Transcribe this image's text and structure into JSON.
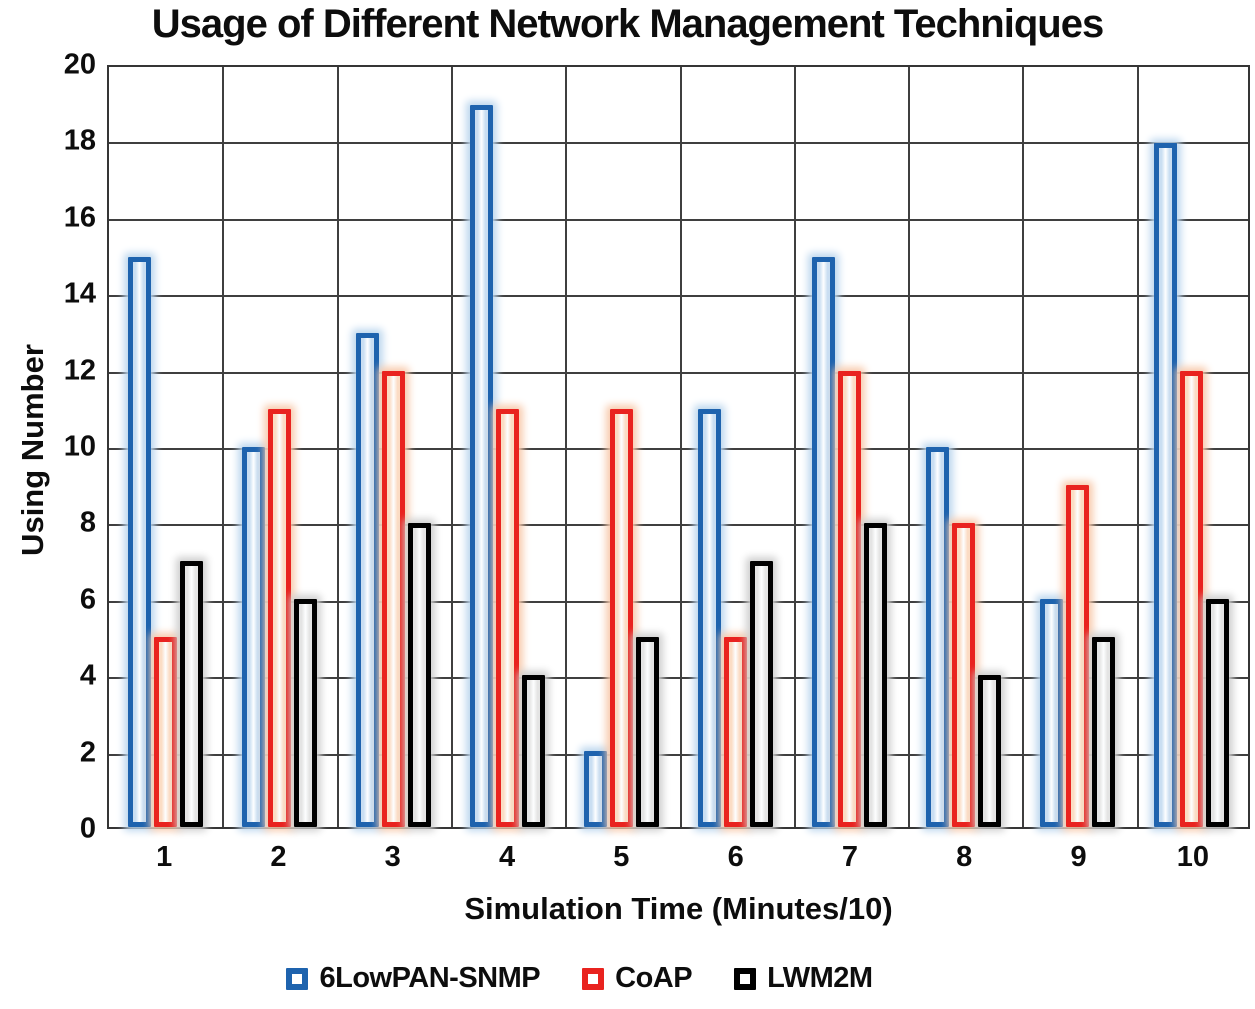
{
  "title": "Usage of Different Network Management Techniques",
  "chart_data": {
    "type": "bar",
    "title": "Usage of Different Network Management Techniques",
    "categories": [
      "1",
      "2",
      "3",
      "4",
      "5",
      "6",
      "7",
      "8",
      "9",
      "10"
    ],
    "series": [
      {
        "name": "6LowPAN-SNMP",
        "color": "#1e63ae",
        "glow": "#bdd7ee",
        "inner_edge": "#c9def2",
        "values": [
          15,
          10,
          13,
          19,
          2,
          11,
          15,
          10,
          6,
          18
        ]
      },
      {
        "name": "CoAP",
        "color": "#e9231f",
        "glow": "#f8cbad",
        "inner_edge": "#fbdcc4",
        "values": [
          5,
          11,
          12,
          11,
          11,
          5,
          12,
          8,
          9,
          12
        ]
      },
      {
        "name": "LWM2M",
        "color": "#000000",
        "glow": "#cfcfcf",
        "inner_edge": "#e4e4e4",
        "values": [
          7,
          6,
          8,
          4,
          5,
          7,
          8,
          4,
          5,
          6
        ]
      }
    ],
    "xlabel": "Simulation Time (Minutes/10)",
    "ylabel": "Using Number",
    "ylim": [
      0,
      20
    ],
    "ytick_step": 2,
    "yticks": [
      0,
      2,
      4,
      6,
      8,
      10,
      12,
      14,
      16,
      18,
      20
    ],
    "grid": true,
    "gridline_color": "#3f3f3f",
    "legend_position": "bottom"
  }
}
